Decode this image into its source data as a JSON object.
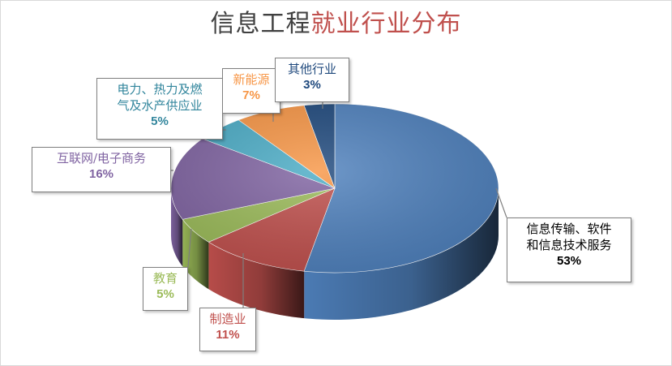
{
  "title": {
    "part1": "信息工程",
    "part2": "就业行业分布"
  },
  "colors": {
    "title_main": "#404040",
    "title_accent": "#c0504d"
  },
  "chart_data": {
    "type": "pie",
    "title": "信息工程就业行业分布",
    "slices": [
      {
        "label": "信息传输、软件和信息技术服务",
        "lines": [
          "信息传输、软件",
          "和信息技术服务"
        ],
        "value": 53,
        "pct": "53%",
        "color": "#4f81bd",
        "text_color": "#000000"
      },
      {
        "label": "制造业",
        "lines": [
          "制造业"
        ],
        "value": 11,
        "pct": "11%",
        "color": "#c0504d",
        "text_color": "#c0504d"
      },
      {
        "label": "教育",
        "lines": [
          "教育"
        ],
        "value": 5,
        "pct": "5%",
        "color": "#9bbb59",
        "text_color": "#9bbb59"
      },
      {
        "label": "互联网/电子商务",
        "lines": [
          "互联网/电子商务"
        ],
        "value": 16,
        "pct": "16%",
        "color": "#8064a2",
        "text_color": "#8064a2"
      },
      {
        "label": "电力、热力及燃气及水产供应业",
        "lines": [
          "电力、热力及燃",
          "气及水产供应业"
        ],
        "value": 5,
        "pct": "5%",
        "color": "#4bacc6",
        "text_color": "#31859c"
      },
      {
        "label": "新能源",
        "lines": [
          "新能源"
        ],
        "value": 7,
        "pct": "7%",
        "color": "#f79646",
        "text_color": "#f79646"
      },
      {
        "label": "其他行业",
        "lines": [
          "其他行业"
        ],
        "value": 3,
        "pct": "3%",
        "color": "#1f497d",
        "text_color": "#1f497d"
      }
    ]
  }
}
